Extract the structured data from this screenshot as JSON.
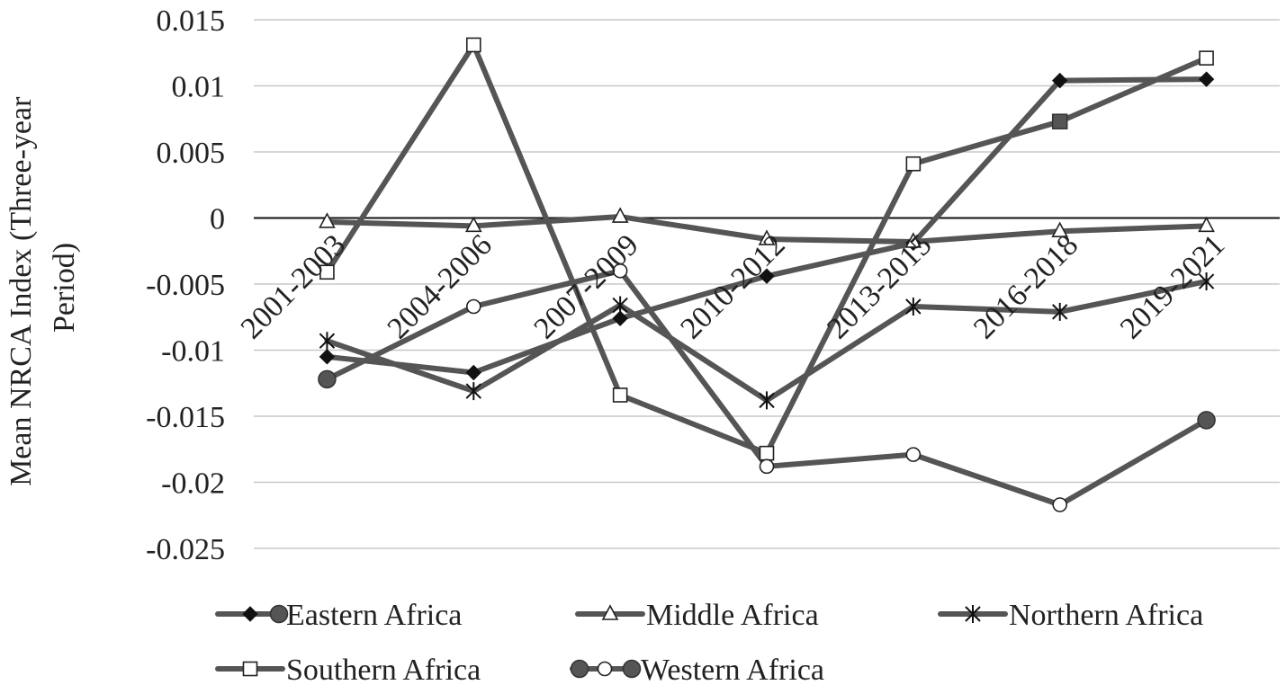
{
  "chart_data": {
    "type": "line",
    "title": "",
    "xlabel": "",
    "ylabel_lines": [
      "Mean NRCA Index (Three-year",
      "Period)"
    ],
    "categories": [
      "2001-2003",
      "2004-2006",
      "2007-2009",
      "2010-2012",
      "2013-2015",
      "2016-2018",
      "2019-2021"
    ],
    "ylim": [
      -0.025,
      0.015
    ],
    "yticks": [
      {
        "value": 0.015,
        "label": "0.015"
      },
      {
        "value": 0.01,
        "label": "0.01"
      },
      {
        "value": 0.005,
        "label": "0.005"
      },
      {
        "value": 0,
        "label": "0"
      },
      {
        "value": -0.005,
        "label": "-0.005"
      },
      {
        "value": -0.01,
        "label": "-0.01"
      },
      {
        "value": -0.015,
        "label": "-0.015"
      },
      {
        "value": -0.02,
        "label": "-0.02"
      },
      {
        "value": -0.025,
        "label": "-0.025"
      }
    ],
    "grid": true,
    "legend_position": "bottom",
    "line_color": "#555555",
    "series": [
      {
        "name": "Eastern Africa",
        "marker": "diamond",
        "values": [
          -0.0105,
          -0.0117,
          -0.0076,
          -0.0044,
          -0.0019,
          0.0104,
          0.0105
        ]
      },
      {
        "name": "Middle Africa",
        "marker": "triangle",
        "values": [
          -0.0003,
          -0.0006,
          0.0001,
          -0.0016,
          -0.0018,
          -0.001,
          -0.0006
        ]
      },
      {
        "name": "Northern Africa",
        "marker": "asterisk",
        "values": [
          -0.0093,
          -0.0131,
          -0.0066,
          -0.0138,
          -0.0067,
          -0.0071,
          -0.0048
        ]
      },
      {
        "name": "Southern Africa",
        "marker": "square",
        "values": [
          -0.0041,
          0.0131,
          -0.0134,
          -0.0178,
          0.0041,
          0.0073,
          0.0121
        ]
      },
      {
        "name": "Western Africa",
        "marker": "circle",
        "values": [
          -0.0122,
          -0.0067,
          -0.004,
          -0.0188,
          -0.0179,
          -0.0217,
          -0.0153
        ]
      }
    ]
  }
}
